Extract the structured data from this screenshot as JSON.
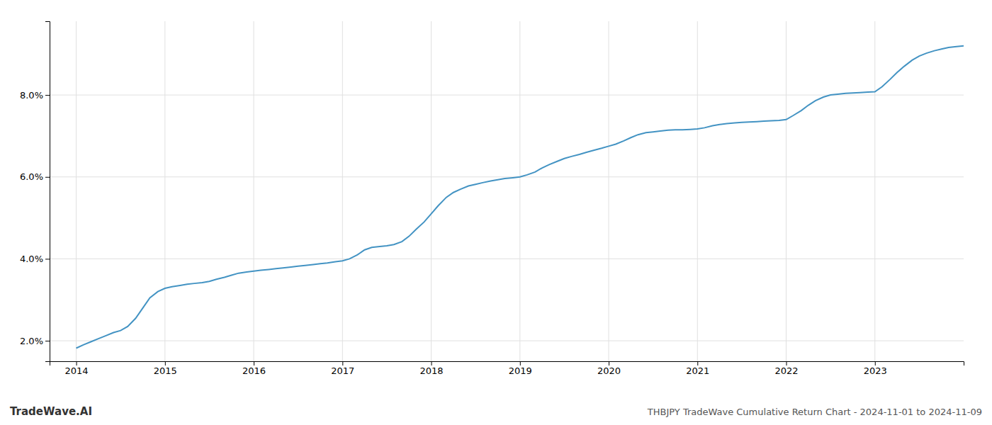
{
  "chart_data": {
    "type": "line",
    "title": "THBJPY TradeWave Cumulative Return Chart - 2024-11-01 to 2024-11-09",
    "annotations": [
      "TradeWave.AI"
    ],
    "color": "#4393c3",
    "grid": true,
    "x": [
      2014.0,
      2014.08,
      2014.17,
      2014.25,
      2014.33,
      2014.42,
      2014.5,
      2014.58,
      2014.67,
      2014.75,
      2014.83,
      2014.92,
      2015.0,
      2015.08,
      2015.17,
      2015.25,
      2015.33,
      2015.42,
      2015.5,
      2015.58,
      2015.67,
      2015.75,
      2015.83,
      2015.92,
      2016.0,
      2016.08,
      2016.17,
      2016.25,
      2016.33,
      2016.42,
      2016.5,
      2016.58,
      2016.67,
      2016.75,
      2016.83,
      2016.92,
      2017.0,
      2017.08,
      2017.17,
      2017.25,
      2017.33,
      2017.42,
      2017.5,
      2017.58,
      2017.67,
      2017.75,
      2017.83,
      2017.92,
      2018.0,
      2018.08,
      2018.17,
      2018.25,
      2018.33,
      2018.42,
      2018.5,
      2018.58,
      2018.67,
      2018.75,
      2018.83,
      2018.92,
      2019.0,
      2019.08,
      2019.17,
      2019.25,
      2019.33,
      2019.42,
      2019.5,
      2019.58,
      2019.67,
      2019.75,
      2019.83,
      2019.92,
      2020.0,
      2020.08,
      2020.17,
      2020.25,
      2020.33,
      2020.42,
      2020.5,
      2020.58,
      2020.67,
      2020.75,
      2020.83,
      2020.92,
      2021.0,
      2021.08,
      2021.17,
      2021.25,
      2021.33,
      2021.42,
      2021.5,
      2021.58,
      2021.67,
      2021.75,
      2021.83,
      2021.92,
      2022.0,
      2022.08,
      2022.17,
      2022.25,
      2022.33,
      2022.42,
      2022.5,
      2022.58,
      2022.67,
      2022.75,
      2022.83,
      2022.92,
      2023.0,
      2023.08,
      2023.17,
      2023.25,
      2023.33,
      2023.42,
      2023.5,
      2023.58,
      2023.67,
      2023.75,
      2023.83,
      2023.92,
      2024.0
    ],
    "values": [
      1.82,
      1.9,
      1.98,
      2.05,
      2.12,
      2.2,
      2.25,
      2.35,
      2.55,
      2.8,
      3.05,
      3.2,
      3.28,
      3.32,
      3.35,
      3.38,
      3.4,
      3.42,
      3.45,
      3.5,
      3.55,
      3.6,
      3.65,
      3.68,
      3.7,
      3.72,
      3.74,
      3.76,
      3.78,
      3.8,
      3.82,
      3.84,
      3.86,
      3.88,
      3.9,
      3.93,
      3.95,
      4.0,
      4.1,
      4.22,
      4.28,
      4.3,
      4.32,
      4.35,
      4.42,
      4.55,
      4.72,
      4.9,
      5.1,
      5.3,
      5.5,
      5.62,
      5.7,
      5.78,
      5.82,
      5.86,
      5.9,
      5.93,
      5.96,
      5.98,
      6.0,
      6.05,
      6.12,
      6.22,
      6.3,
      6.38,
      6.45,
      6.5,
      6.55,
      6.6,
      6.65,
      6.7,
      6.75,
      6.8,
      6.88,
      6.96,
      7.03,
      7.08,
      7.1,
      7.12,
      7.14,
      7.15,
      7.15,
      7.16,
      7.17,
      7.2,
      7.25,
      7.28,
      7.3,
      7.32,
      7.33,
      7.34,
      7.35,
      7.36,
      7.37,
      7.38,
      7.4,
      7.5,
      7.62,
      7.75,
      7.86,
      7.95,
      8.0,
      8.02,
      8.04,
      8.05,
      8.06,
      8.07,
      8.08,
      8.2,
      8.38,
      8.55,
      8.7,
      8.85,
      8.95,
      9.02,
      9.08,
      9.12,
      9.16,
      9.18,
      9.2
    ],
    "xlim": [
      2013.7,
      2024.0
    ],
    "ylim": [
      1.5,
      9.8
    ],
    "xticks": [
      2014,
      2015,
      2016,
      2017,
      2018,
      2019,
      2020,
      2021,
      2022,
      2023
    ],
    "yticks": [
      {
        "value": 2.0,
        "label": "2.0%"
      },
      {
        "value": 4.0,
        "label": "4.0%"
      },
      {
        "value": 6.0,
        "label": "6.0%"
      },
      {
        "value": 8.0,
        "label": "8.0%"
      }
    ]
  }
}
